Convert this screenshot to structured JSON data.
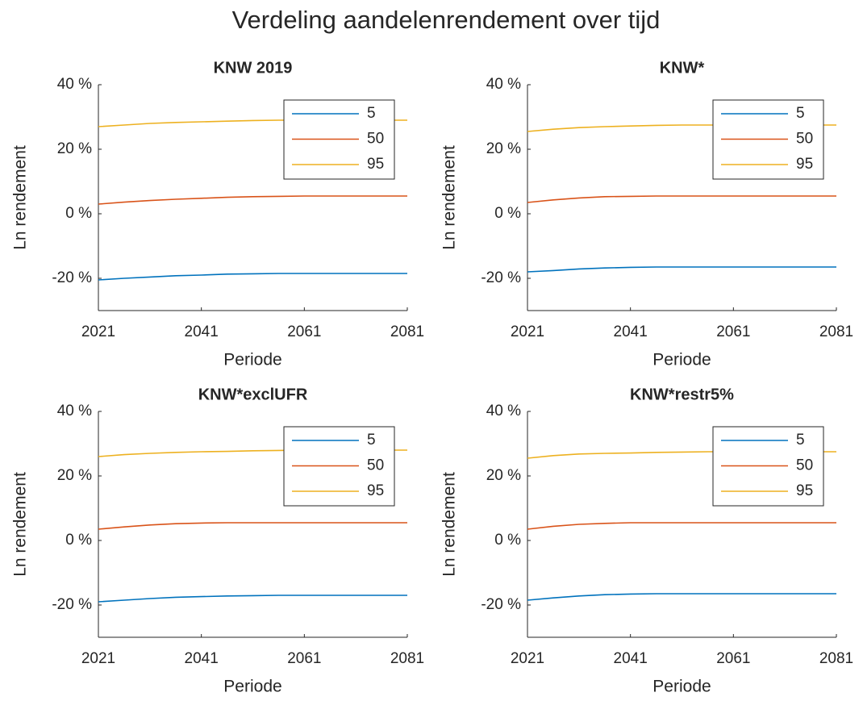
{
  "title": "Verdeling aandelenrendement over tijd",
  "chart_data": [
    {
      "type": "line",
      "title": "KNW 2019",
      "xlabel": "Periode",
      "ylabel": "Ln rendement",
      "x": [
        2021,
        2026,
        2031,
        2036,
        2041,
        2046,
        2051,
        2056,
        2061,
        2066,
        2071,
        2076,
        2081
      ],
      "series": [
        {
          "name": "5",
          "color": "#0072BD",
          "values": [
            -20.5,
            -20,
            -19.6,
            -19.2,
            -19,
            -18.7,
            -18.6,
            -18.5,
            -18.5,
            -18.5,
            -18.5,
            -18.5,
            -18.5
          ]
        },
        {
          "name": "50",
          "color": "#D95319",
          "values": [
            3,
            3.6,
            4.1,
            4.5,
            4.8,
            5.1,
            5.3,
            5.4,
            5.5,
            5.5,
            5.5,
            5.5,
            5.5
          ]
        },
        {
          "name": "95",
          "color": "#EDB120",
          "values": [
            27,
            27.5,
            28,
            28.3,
            28.5,
            28.7,
            28.9,
            29,
            29,
            29,
            29,
            29,
            29
          ]
        }
      ],
      "xlim": [
        2021,
        2081
      ],
      "xticks": [
        2021,
        2041,
        2061,
        2081
      ],
      "ylim": [
        -30,
        40
      ],
      "yticks": [
        {
          "value": 40,
          "label": "40 %"
        },
        {
          "value": 20,
          "label": "20 %"
        },
        {
          "value": 0,
          "label": "0 %"
        },
        {
          "value": -20,
          "label": "-20 %"
        }
      ],
      "legend": "upper right"
    },
    {
      "type": "line",
      "title": "KNW*",
      "xlabel": "Periode",
      "ylabel": "Ln rendement",
      "x": [
        2021,
        2026,
        2031,
        2036,
        2041,
        2046,
        2051,
        2056,
        2061,
        2066,
        2071,
        2076,
        2081
      ],
      "series": [
        {
          "name": "5",
          "color": "#0072BD",
          "values": [
            -18,
            -17.6,
            -17.1,
            -16.8,
            -16.6,
            -16.5,
            -16.5,
            -16.5,
            -16.5,
            -16.5,
            -16.5,
            -16.5,
            -16.5
          ]
        },
        {
          "name": "50",
          "color": "#D95319",
          "values": [
            3.5,
            4.3,
            4.9,
            5.3,
            5.4,
            5.5,
            5.5,
            5.5,
            5.5,
            5.5,
            5.5,
            5.5,
            5.5
          ]
        },
        {
          "name": "95",
          "color": "#EDB120",
          "values": [
            25.5,
            26.2,
            26.7,
            27,
            27.2,
            27.4,
            27.5,
            27.5,
            27.5,
            27.5,
            27.5,
            27.5,
            27.5
          ]
        }
      ],
      "xlim": [
        2021,
        2081
      ],
      "xticks": [
        2021,
        2041,
        2061,
        2081
      ],
      "ylim": [
        -30,
        40
      ],
      "yticks": [
        {
          "value": 40,
          "label": "40 %"
        },
        {
          "value": 20,
          "label": "20 %"
        },
        {
          "value": 0,
          "label": "0 %"
        },
        {
          "value": -20,
          "label": "-20 %"
        }
      ],
      "legend": "upper right"
    },
    {
      "type": "line",
      "title": "KNW*exclUFR",
      "xlabel": "Periode",
      "ylabel": "Ln rendement",
      "x": [
        2021,
        2026,
        2031,
        2036,
        2041,
        2046,
        2051,
        2056,
        2061,
        2066,
        2071,
        2076,
        2081
      ],
      "series": [
        {
          "name": "5",
          "color": "#0072BD",
          "values": [
            -19,
            -18.5,
            -18,
            -17.6,
            -17.4,
            -17.2,
            -17.1,
            -17,
            -17,
            -17,
            -17,
            -17,
            -17
          ]
        },
        {
          "name": "50",
          "color": "#D95319",
          "values": [
            3.5,
            4.2,
            4.8,
            5.2,
            5.4,
            5.5,
            5.5,
            5.5,
            5.5,
            5.5,
            5.5,
            5.5,
            5.5
          ]
        },
        {
          "name": "95",
          "color": "#EDB120",
          "values": [
            26,
            26.6,
            27,
            27.3,
            27.5,
            27.6,
            27.8,
            27.9,
            28,
            28,
            28,
            28,
            28
          ]
        }
      ],
      "xlim": [
        2021,
        2081
      ],
      "xticks": [
        2021,
        2041,
        2061,
        2081
      ],
      "ylim": [
        -30,
        40
      ],
      "yticks": [
        {
          "value": 40,
          "label": "40 %"
        },
        {
          "value": 20,
          "label": "20 %"
        },
        {
          "value": 0,
          "label": "0 %"
        },
        {
          "value": -20,
          "label": "-20 %"
        }
      ],
      "legend": "upper right"
    },
    {
      "type": "line",
      "title": "KNW*restr5%",
      "xlabel": "Periode",
      "ylabel": "Ln rendement",
      "x": [
        2021,
        2026,
        2031,
        2036,
        2041,
        2046,
        2051,
        2056,
        2061,
        2066,
        2071,
        2076,
        2081
      ],
      "series": [
        {
          "name": "5",
          "color": "#0072BD",
          "values": [
            -18.5,
            -17.8,
            -17.2,
            -16.8,
            -16.6,
            -16.5,
            -16.5,
            -16.5,
            -16.5,
            -16.5,
            -16.5,
            -16.5,
            -16.5
          ]
        },
        {
          "name": "50",
          "color": "#D95319",
          "values": [
            3.5,
            4.4,
            5,
            5.3,
            5.5,
            5.5,
            5.5,
            5.5,
            5.5,
            5.5,
            5.5,
            5.5,
            5.5
          ]
        },
        {
          "name": "95",
          "color": "#EDB120",
          "values": [
            25.5,
            26.3,
            26.8,
            27,
            27.1,
            27.3,
            27.4,
            27.5,
            27.5,
            27.5,
            27.5,
            27.5,
            27.5
          ]
        }
      ],
      "xlim": [
        2021,
        2081
      ],
      "xticks": [
        2021,
        2041,
        2061,
        2081
      ],
      "ylim": [
        -30,
        40
      ],
      "yticks": [
        {
          "value": 40,
          "label": "40 %"
        },
        {
          "value": 20,
          "label": "20 %"
        },
        {
          "value": 0,
          "label": "0 %"
        },
        {
          "value": -20,
          "label": "-20 %"
        }
      ],
      "legend": "upper right"
    }
  ]
}
